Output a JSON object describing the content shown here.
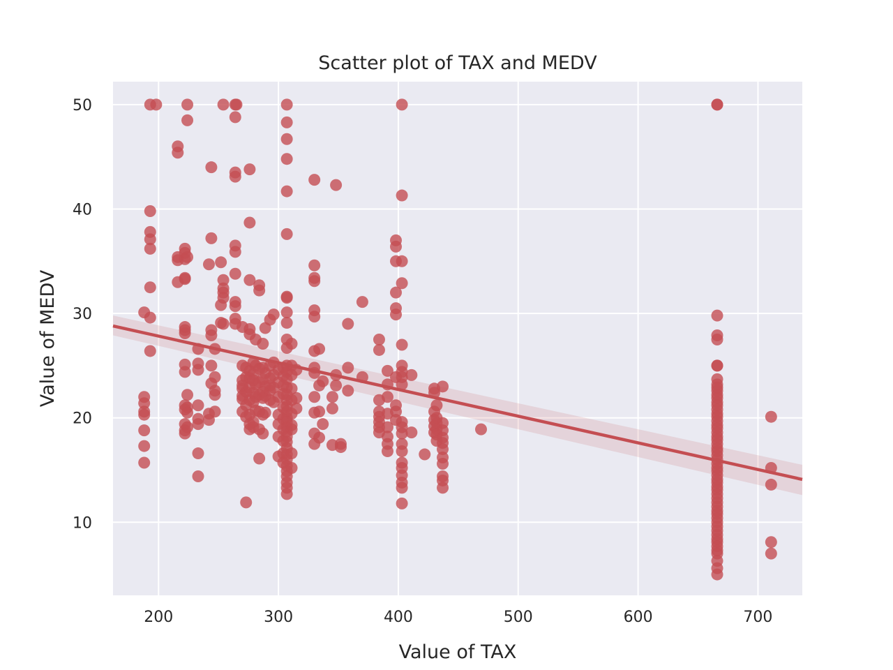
{
  "chart_data": {
    "type": "scatter",
    "title": "Scatter plot of TAX and MEDV",
    "xlabel": "Value of TAX",
    "ylabel": "Value of MEDV",
    "xlim": [
      162,
      737
    ],
    "ylim": [
      3.0,
      52.2
    ],
    "xticks": [
      200,
      300,
      400,
      500,
      600,
      700
    ],
    "yticks": [
      10,
      20,
      30,
      40,
      50
    ],
    "grid": true,
    "background": "#eaeaf2",
    "point_color": "#c44e52",
    "regression": {
      "x_range": [
        162,
        737
      ],
      "y_range": [
        28.8,
        14.1
      ],
      "ci_lower": [
        27.9,
        12.6
      ],
      "ci_upper": [
        29.8,
        15.5
      ]
    },
    "points": [
      [
        188,
        30.1
      ],
      [
        188,
        22.0
      ],
      [
        188,
        21.4
      ],
      [
        188,
        20.6
      ],
      [
        188,
        20.3
      ],
      [
        188,
        18.8
      ],
      [
        188,
        17.3
      ],
      [
        188,
        15.7
      ],
      [
        193,
        50.0
      ],
      [
        198,
        50.0
      ],
      [
        193,
        39.8
      ],
      [
        193,
        37.8
      ],
      [
        193,
        37.1
      ],
      [
        193,
        36.2
      ],
      [
        193,
        32.5
      ],
      [
        193,
        29.6
      ],
      [
        193,
        26.4
      ],
      [
        216,
        46.0
      ],
      [
        216,
        45.4
      ],
      [
        216,
        35.4
      ],
      [
        216,
        35.1
      ],
      [
        216,
        33.0
      ],
      [
        222,
        36.2
      ],
      [
        222,
        35.8
      ],
      [
        222,
        35.2
      ],
      [
        222,
        33.4
      ],
      [
        222,
        33.3
      ],
      [
        222,
        28.7
      ],
      [
        222,
        28.4
      ],
      [
        222,
        28.1
      ],
      [
        222,
        25.1
      ],
      [
        222,
        24.4
      ],
      [
        222,
        21.2
      ],
      [
        222,
        20.8
      ],
      [
        222,
        19.4
      ],
      [
        222,
        18.8
      ],
      [
        222,
        18.5
      ],
      [
        224,
        50.0
      ],
      [
        224,
        48.5
      ],
      [
        224,
        35.4
      ],
      [
        224,
        22.2
      ],
      [
        224,
        21.0
      ],
      [
        224,
        20.5
      ],
      [
        224,
        19.1
      ],
      [
        233,
        26.6
      ],
      [
        233,
        25.2
      ],
      [
        233,
        24.6
      ],
      [
        233,
        21.2
      ],
      [
        233,
        19.9
      ],
      [
        233,
        19.4
      ],
      [
        233,
        16.6
      ],
      [
        233,
        14.4
      ],
      [
        242,
        34.7
      ],
      [
        242,
        20.4
      ],
      [
        242,
        19.8
      ],
      [
        244,
        44.0
      ],
      [
        244,
        37.2
      ],
      [
        244,
        28.4
      ],
      [
        244,
        27.9
      ],
      [
        244,
        25.0
      ],
      [
        244,
        23.3
      ],
      [
        247,
        26.6
      ],
      [
        247,
        23.9
      ],
      [
        247,
        22.6
      ],
      [
        247,
        22.2
      ],
      [
        247,
        20.6
      ],
      [
        252,
        34.9
      ],
      [
        252,
        30.8
      ],
      [
        252,
        29.1
      ],
      [
        254,
        33.2
      ],
      [
        254,
        32.4
      ],
      [
        254,
        32.0
      ],
      [
        254,
        31.5
      ],
      [
        254,
        29.0
      ],
      [
        254,
        50.0
      ],
      [
        264,
        50.0
      ],
      [
        265,
        50.0
      ],
      [
        264,
        48.8
      ],
      [
        264,
        43.5
      ],
      [
        264,
        43.1
      ],
      [
        264,
        36.5
      ],
      [
        264,
        35.9
      ],
      [
        264,
        33.8
      ],
      [
        264,
        31.1
      ],
      [
        264,
        30.7
      ],
      [
        264,
        29.5
      ],
      [
        264,
        29.0
      ],
      [
        270,
        25.0
      ],
      [
        270,
        23.6
      ],
      [
        270,
        23.1
      ],
      [
        270,
        22.8
      ],
      [
        270,
        22.1
      ],
      [
        270,
        20.6
      ],
      [
        270,
        21.8
      ],
      [
        270,
        28.7
      ],
      [
        273,
        11.9
      ],
      [
        273,
        24.8
      ],
      [
        273,
        23.9
      ],
      [
        273,
        22.5
      ],
      [
        273,
        21.2
      ],
      [
        273,
        20.1
      ],
      [
        276,
        43.8
      ],
      [
        276,
        38.7
      ],
      [
        276,
        33.2
      ],
      [
        276,
        28.5
      ],
      [
        276,
        28.0
      ],
      [
        276,
        24.5
      ],
      [
        276,
        23.8
      ],
      [
        276,
        22.9
      ],
      [
        276,
        21.7
      ],
      [
        276,
        20.3
      ],
      [
        276,
        19.4
      ],
      [
        276,
        18.9
      ],
      [
        279,
        25.3
      ],
      [
        279,
        24.2
      ],
      [
        279,
        23.6
      ],
      [
        279,
        22.4
      ],
      [
        279,
        21.5
      ],
      [
        279,
        19.6
      ],
      [
        279,
        19.1
      ],
      [
        281,
        27.5
      ],
      [
        281,
        25.0
      ],
      [
        281,
        23.2
      ],
      [
        281,
        22.0
      ],
      [
        281,
        20.7
      ],
      [
        284,
        32.7
      ],
      [
        284,
        32.2
      ],
      [
        284,
        24.7
      ],
      [
        284,
        23.4
      ],
      [
        284,
        22.2
      ],
      [
        284,
        20.6
      ],
      [
        284,
        18.9
      ],
      [
        284,
        16.1
      ],
      [
        287,
        27.1
      ],
      [
        287,
        24.8
      ],
      [
        287,
        23.7
      ],
      [
        287,
        22.5
      ],
      [
        287,
        21.9
      ],
      [
        287,
        20.3
      ],
      [
        287,
        18.5
      ],
      [
        289,
        28.6
      ],
      [
        289,
        24.3
      ],
      [
        289,
        23.0
      ],
      [
        289,
        22.1
      ],
      [
        289,
        20.5
      ],
      [
        293,
        29.4
      ],
      [
        293,
        25.0
      ],
      [
        293,
        23.8
      ],
      [
        293,
        23.1
      ],
      [
        293,
        22.6
      ],
      [
        293,
        21.7
      ],
      [
        296,
        29.9
      ],
      [
        296,
        25.3
      ],
      [
        296,
        24.1
      ],
      [
        296,
        22.9
      ],
      [
        296,
        21.5
      ],
      [
        300,
        24.6
      ],
      [
        300,
        23.4
      ],
      [
        300,
        22.0
      ],
      [
        300,
        20.3
      ],
      [
        300,
        19.4
      ],
      [
        300,
        18.2
      ],
      [
        300,
        16.3
      ],
      [
        304,
        24.8
      ],
      [
        304,
        24.0
      ],
      [
        304,
        23.1
      ],
      [
        304,
        22.3
      ],
      [
        304,
        21.0
      ],
      [
        304,
        19.9
      ],
      [
        304,
        18.9
      ],
      [
        304,
        17.8
      ],
      [
        304,
        16.6
      ],
      [
        304,
        15.7
      ],
      [
        307,
        50.0
      ],
      [
        307,
        48.3
      ],
      [
        307,
        46.7
      ],
      [
        307,
        44.8
      ],
      [
        307,
        41.7
      ],
      [
        307,
        37.6
      ],
      [
        307,
        31.6
      ],
      [
        307,
        31.5
      ],
      [
        307,
        30.1
      ],
      [
        307,
        29.1
      ],
      [
        307,
        27.5
      ],
      [
        307,
        26.7
      ],
      [
        307,
        25.0
      ],
      [
        307,
        24.4
      ],
      [
        307,
        23.7
      ],
      [
        307,
        22.9
      ],
      [
        307,
        22.2
      ],
      [
        307,
        21.7
      ],
      [
        307,
        21.1
      ],
      [
        307,
        20.6
      ],
      [
        307,
        20.0
      ],
      [
        307,
        19.6
      ],
      [
        307,
        19.1
      ],
      [
        307,
        18.7
      ],
      [
        307,
        18.2
      ],
      [
        307,
        17.7
      ],
      [
        307,
        17.1
      ],
      [
        307,
        16.5
      ],
      [
        307,
        16.0
      ],
      [
        307,
        15.4
      ],
      [
        307,
        14.9
      ],
      [
        307,
        14.4
      ],
      [
        307,
        13.8
      ],
      [
        307,
        13.3
      ],
      [
        307,
        12.7
      ],
      [
        311,
        27.1
      ],
      [
        311,
        25.0
      ],
      [
        311,
        24.1
      ],
      [
        311,
        22.8
      ],
      [
        311,
        21.7
      ],
      [
        311,
        20.4
      ],
      [
        311,
        19.3
      ],
      [
        311,
        18.9
      ],
      [
        311,
        16.6
      ],
      [
        311,
        15.2
      ],
      [
        315,
        24.6
      ],
      [
        315,
        21.9
      ],
      [
        315,
        20.9
      ],
      [
        330,
        42.8
      ],
      [
        330,
        34.6
      ],
      [
        330,
        33.4
      ],
      [
        330,
        33.1
      ],
      [
        330,
        30.3
      ],
      [
        330,
        29.7
      ],
      [
        330,
        26.4
      ],
      [
        330,
        24.8
      ],
      [
        330,
        24.3
      ],
      [
        330,
        22.0
      ],
      [
        330,
        20.5
      ],
      [
        330,
        18.5
      ],
      [
        330,
        17.5
      ],
      [
        334,
        26.6
      ],
      [
        334,
        23.1
      ],
      [
        334,
        20.6
      ],
      [
        334,
        18.1
      ],
      [
        337,
        23.5
      ],
      [
        337,
        19.4
      ],
      [
        345,
        22.0
      ],
      [
        345,
        20.9
      ],
      [
        345,
        17.4
      ],
      [
        348,
        42.3
      ],
      [
        348,
        24.1
      ],
      [
        348,
        23.1
      ],
      [
        352,
        17.5
      ],
      [
        352,
        17.2
      ],
      [
        358,
        29.0
      ],
      [
        358,
        24.8
      ],
      [
        358,
        22.6
      ],
      [
        370,
        31.1
      ],
      [
        370,
        23.9
      ],
      [
        384,
        27.5
      ],
      [
        384,
        26.5
      ],
      [
        384,
        21.7
      ],
      [
        384,
        20.6
      ],
      [
        384,
        20.1
      ],
      [
        384,
        19.6
      ],
      [
        384,
        19.1
      ],
      [
        384,
        18.6
      ],
      [
        391,
        24.5
      ],
      [
        391,
        23.2
      ],
      [
        391,
        22.0
      ],
      [
        391,
        20.4
      ],
      [
        391,
        19.1
      ],
      [
        391,
        18.2
      ],
      [
        391,
        17.5
      ],
      [
        391,
        16.8
      ],
      [
        398,
        37.0
      ],
      [
        398,
        36.4
      ],
      [
        398,
        35.0
      ],
      [
        398,
        32.0
      ],
      [
        398,
        30.5
      ],
      [
        398,
        29.9
      ],
      [
        398,
        23.9
      ],
      [
        398,
        21.2
      ],
      [
        398,
        20.6
      ],
      [
        398,
        19.8
      ],
      [
        403,
        50.0
      ],
      [
        403,
        41.3
      ],
      [
        403,
        35.0
      ],
      [
        403,
        32.9
      ],
      [
        403,
        27.0
      ],
      [
        403,
        25.0
      ],
      [
        403,
        24.4
      ],
      [
        403,
        23.9
      ],
      [
        403,
        23.2
      ],
      [
        403,
        19.6
      ],
      [
        403,
        19.1
      ],
      [
        403,
        18.5
      ],
      [
        403,
        17.5
      ],
      [
        403,
        16.8
      ],
      [
        403,
        15.7
      ],
      [
        403,
        15.2
      ],
      [
        403,
        14.5
      ],
      [
        403,
        13.8
      ],
      [
        403,
        13.3
      ],
      [
        403,
        11.8
      ],
      [
        411,
        24.1
      ],
      [
        411,
        18.6
      ],
      [
        422,
        16.5
      ],
      [
        430,
        22.8
      ],
      [
        430,
        22.4
      ],
      [
        430,
        20.6
      ],
      [
        430,
        19.8
      ],
      [
        430,
        19.2
      ],
      [
        430,
        18.6
      ],
      [
        432,
        21.2
      ],
      [
        432,
        20.0
      ],
      [
        432,
        19.5
      ],
      [
        432,
        18.9
      ],
      [
        432,
        18.4
      ],
      [
        432,
        17.8
      ],
      [
        437,
        23.0
      ],
      [
        437,
        19.5
      ],
      [
        437,
        18.8
      ],
      [
        437,
        18.1
      ],
      [
        437,
        17.6
      ],
      [
        437,
        17.0
      ],
      [
        437,
        16.2
      ],
      [
        437,
        15.6
      ],
      [
        437,
        14.4
      ],
      [
        437,
        14.0
      ],
      [
        437,
        13.3
      ],
      [
        469,
        18.9
      ],
      [
        666,
        50.0
      ],
      [
        666,
        50.0
      ],
      [
        666,
        29.8
      ],
      [
        666,
        27.9
      ],
      [
        666,
        27.5
      ],
      [
        666,
        25.0
      ],
      [
        666,
        25.0
      ],
      [
        666,
        23.7
      ],
      [
        666,
        23.2
      ],
      [
        666,
        22.9
      ],
      [
        666,
        22.6
      ],
      [
        666,
        22.2
      ],
      [
        666,
        21.9
      ],
      [
        666,
        21.5
      ],
      [
        666,
        21.2
      ],
      [
        666,
        20.8
      ],
      [
        666,
        20.4
      ],
      [
        666,
        20.1
      ],
      [
        666,
        19.7
      ],
      [
        666,
        19.3
      ],
      [
        666,
        19.0
      ],
      [
        666,
        18.6
      ],
      [
        666,
        18.2
      ],
      [
        666,
        17.9
      ],
      [
        666,
        17.5
      ],
      [
        666,
        17.1
      ],
      [
        666,
        16.8
      ],
      [
        666,
        16.4
      ],
      [
        666,
        16.0
      ],
      [
        666,
        15.6
      ],
      [
        666,
        15.2
      ],
      [
        666,
        14.9
      ],
      [
        666,
        14.5
      ],
      [
        666,
        14.1
      ],
      [
        666,
        13.8
      ],
      [
        666,
        13.4
      ],
      [
        666,
        13.1
      ],
      [
        666,
        12.7
      ],
      [
        666,
        12.3
      ],
      [
        666,
        11.9
      ],
      [
        666,
        11.5
      ],
      [
        666,
        11.1
      ],
      [
        666,
        10.8
      ],
      [
        666,
        10.4
      ],
      [
        666,
        10.0
      ],
      [
        666,
        9.6
      ],
      [
        666,
        9.2
      ],
      [
        666,
        8.8
      ],
      [
        666,
        8.4
      ],
      [
        666,
        8.1
      ],
      [
        666,
        7.7
      ],
      [
        666,
        7.3
      ],
      [
        666,
        7.0
      ],
      [
        666,
        6.3
      ],
      [
        666,
        5.6
      ],
      [
        666,
        5.0
      ],
      [
        711,
        20.1
      ],
      [
        711,
        15.2
      ],
      [
        711,
        13.6
      ],
      [
        711,
        8.1
      ],
      [
        711,
        7.0
      ]
    ]
  }
}
